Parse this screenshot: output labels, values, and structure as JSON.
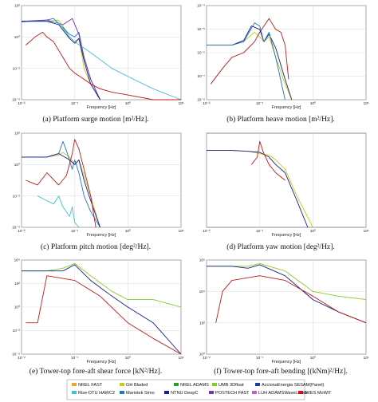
{
  "captions": [
    "(a)  Platform surge motion [m²/Hz].",
    "(b)  Platform heave motion [m²/Hz].",
    "(c)  Platform pitch motion [deg²/Hz].",
    "(d)  Platform yaw motion [deg²/Hz].",
    "(e)  Tower-top fore-aft shear force [kN²/Hz].",
    "(f)  Tower-top fore-aft bending [(kNm)²/Hz]."
  ],
  "legend": [
    {
      "name": "NREL FAST",
      "color": "#f0a32c"
    },
    {
      "name": "GH Bladed",
      "color": "#c8c820"
    },
    {
      "name": "NREL ADAMS",
      "color": "#2aa02a"
    },
    {
      "name": "UMB 3Dfloat",
      "color": "#88cc22"
    },
    {
      "name": "AccionaEnergia SESAM(Panel)",
      "color": "#1f3fa0"
    },
    {
      "name": "Rise-DTU HAWC2",
      "color": "#41c0d0"
    },
    {
      "name": "Marintek Simo",
      "color": "#1e78c8"
    },
    {
      "name": "NTNU DeepC",
      "color": "#15208a"
    },
    {
      "name": "POSTECH FAST",
      "color": "#7a30b8"
    },
    {
      "name": "LUH ADAMSWaveLoads",
      "color": "#c060c0"
    },
    {
      "name": "IWES MoWiT",
      "color": "#c01818"
    }
  ],
  "chart_data": [
    {
      "type": "line",
      "title": "",
      "xlabel": "Frequency [Hz]",
      "ylabel": "",
      "xscale": "log",
      "yscale": "log",
      "xlim": [
        0.01,
        10
      ],
      "ylim": [
        0.0001,
        100
      ],
      "xticks": [
        "10⁻²",
        "10⁻¹",
        "10⁰",
        "10¹"
      ],
      "yticks": [
        "10⁻⁴",
        "10⁻²",
        "10⁰",
        "10²"
      ],
      "series": [
        {
          "name": "GH Bladed",
          "x": [
            0.01,
            0.03,
            0.05,
            0.06,
            0.08,
            0.1,
            0.12,
            0.15,
            0.2,
            0.3
          ],
          "y": [
            10,
            10,
            12,
            5,
            1,
            0.5,
            0.8,
            0.01,
            0.001,
            0.0001
          ]
        },
        {
          "name": "Marintek Simo",
          "x": [
            0.01,
            0.03,
            0.04,
            0.06,
            0.08,
            0.1,
            0.12,
            0.15,
            0.2,
            0.3
          ],
          "y": [
            9,
            12,
            15,
            4,
            1.5,
            1,
            2,
            0.05,
            0.002,
            0.0001
          ]
        },
        {
          "name": "POSTECH FAST",
          "x": [
            0.01,
            0.03,
            0.06,
            0.09,
            0.12,
            0.15,
            0.2,
            0.3
          ],
          "y": [
            10,
            12,
            6,
            15,
            1.5,
            0.05,
            0.002,
            0.0001
          ]
        },
        {
          "name": "Rise-DTU HAWC2",
          "x": [
            0.01,
            0.03,
            0.05,
            0.08,
            0.1,
            0.2,
            0.5,
            1,
            3,
            10
          ],
          "y": [
            10,
            10,
            8,
            1,
            0.5,
            0.1,
            0.01,
            0.003,
            0.0005,
            0.0001
          ]
        },
        {
          "name": "NTNU DeepC",
          "x": [
            0.01,
            0.03,
            0.05,
            0.08,
            0.1,
            0.12,
            0.15,
            0.2,
            0.3
          ],
          "y": [
            10,
            10,
            6,
            0.8,
            0.4,
            0.8,
            0.03,
            0.001,
            0.0001
          ]
        },
        {
          "name": "IWES MoWiT",
          "x": [
            0.012,
            0.018,
            0.025,
            0.03,
            0.04,
            0.06,
            0.08,
            0.1,
            0.15,
            0.2,
            0.3,
            0.5,
            1,
            3,
            10
          ],
          "y": [
            0.3,
            1,
            2,
            1,
            0.5,
            0.05,
            0.01,
            0.005,
            0.002,
            0.001,
            0.0005,
            0.0003,
            0.0002,
            0.0001,
            0.0001
          ]
        }
      ]
    },
    {
      "type": "line",
      "title": "",
      "xlabel": "Frequency [Hz]",
      "ylabel": "",
      "xscale": "log",
      "yscale": "log",
      "xlim": [
        0.01,
        10
      ],
      "ylim": [
        0.0001,
        100
      ],
      "xticks": [
        "10⁻²",
        "10⁻¹",
        "10⁰",
        "10¹"
      ],
      "yticks": [
        "10⁻⁸",
        "10⁻⁷",
        "10⁻⁶",
        "10⁻⁵",
        "10⁻⁴"
      ],
      "series": [
        {
          "name": "GH Bladed",
          "x": [
            0.01,
            0.03,
            0.05,
            0.08,
            0.1,
            0.12,
            0.15,
            0.2,
            0.3,
            0.4
          ],
          "y": [
            0.3,
            0.3,
            0.5,
            2,
            1,
            0.5,
            1,
            0.05,
            0.001,
            0.0001
          ]
        },
        {
          "name": "NTNU DeepC",
          "x": [
            0.01,
            0.03,
            0.05,
            0.07,
            0.1,
            0.12,
            0.15,
            0.2,
            0.3,
            0.4
          ],
          "y": [
            0.3,
            0.3,
            0.6,
            5,
            3,
            0.5,
            1.5,
            0.2,
            0.002,
            0.0001
          ]
        },
        {
          "name": "Marintek Simo",
          "x": [
            0.01,
            0.03,
            0.05,
            0.08,
            0.1,
            0.12,
            0.15,
            0.2,
            0.3
          ],
          "y": [
            0.3,
            0.3,
            0.5,
            8,
            5,
            0.5,
            2,
            0.05,
            0.0001
          ]
        },
        {
          "name": "IWES MoWiT",
          "x": [
            0.012,
            0.02,
            0.03,
            0.05,
            0.08,
            0.1,
            0.15,
            0.2,
            0.25,
            0.3,
            0.35
          ],
          "y": [
            0.001,
            0.01,
            0.05,
            0.1,
            0.5,
            2,
            15,
            3,
            2,
            0.3,
            0.002
          ]
        }
      ]
    },
    {
      "type": "line",
      "title": "",
      "xlabel": "Frequency [Hz]",
      "ylabel": "",
      "xscale": "log",
      "yscale": "log",
      "xlim": [
        0.01,
        10
      ],
      "ylim": [
        0.0001,
        100
      ],
      "xticks": [
        "10⁻²",
        "10⁻¹",
        "10⁰",
        "10¹"
      ],
      "yticks": [
        "10⁻⁴",
        "10⁻²",
        "10⁰",
        "10²"
      ],
      "series": [
        {
          "name": "GH Bladed",
          "x": [
            0.01,
            0.03,
            0.05,
            0.06,
            0.08,
            0.1,
            0.12,
            0.15,
            0.2,
            0.3
          ],
          "y": [
            3,
            3,
            4,
            6,
            3,
            1,
            2,
            0.2,
            0.01,
            0.0001
          ]
        },
        {
          "name": "Marintek Simo",
          "x": [
            0.01,
            0.03,
            0.05,
            0.06,
            0.07,
            0.09,
            0.1,
            0.12,
            0.15,
            0.2,
            0.3
          ],
          "y": [
            3,
            3,
            5,
            30,
            8,
            0.5,
            2,
            0.3,
            0.01,
            0.001,
            0.0001
          ]
        },
        {
          "name": "NTNU DeepC",
          "x": [
            0.01,
            0.03,
            0.05,
            0.08,
            0.1,
            0.12,
            0.15,
            0.2,
            0.3
          ],
          "y": [
            3,
            3,
            5,
            2,
            1,
            2,
            0.1,
            0.005,
            0.0001
          ]
        },
        {
          "name": "Rise-DTU HAWC2",
          "x": [
            0.02,
            0.03,
            0.04,
            0.05,
            0.06,
            0.08,
            0.09,
            0.1,
            0.12
          ],
          "y": [
            0.01,
            0.005,
            0.003,
            0.01,
            0.002,
            0.0005,
            0.002,
            0.0002,
            0.0001
          ]
        },
        {
          "name": "IWES MoWiT",
          "x": [
            0.012,
            0.02,
            0.03,
            0.05,
            0.07,
            0.09,
            0.1,
            0.12,
            0.15,
            0.2,
            0.25
          ],
          "y": [
            0.1,
            0.05,
            0.3,
            0.05,
            0.2,
            5,
            40,
            10,
            0.5,
            0.01,
            0.0001
          ]
        }
      ]
    },
    {
      "type": "line",
      "title": "",
      "xlabel": "Frequency [Hz]",
      "ylabel": "",
      "xscale": "log",
      "yscale": "log",
      "xlim": [
        0.01,
        10
      ],
      "ylim": [
        0.0001,
        100
      ],
      "xticks": [
        "10⁻²",
        "10⁻¹",
        "10⁰",
        "10¹"
      ],
      "yticks": [],
      "series": [
        {
          "name": "GH Bladed",
          "x": [
            0.01,
            0.03,
            0.06,
            0.1,
            0.15,
            0.2,
            0.3,
            0.5,
            1
          ],
          "y": [
            8,
            8,
            7,
            5,
            4,
            2,
            0.5,
            0.01,
            0.0001
          ]
        },
        {
          "name": "NTNU DeepC",
          "x": [
            0.01,
            0.03,
            0.06,
            0.1,
            0.15,
            0.2,
            0.3,
            0.5,
            0.8
          ],
          "y": [
            8,
            8,
            7,
            6,
            3,
            1,
            0.3,
            0.005,
            0.0001
          ]
        },
        {
          "name": "IWES MoWiT",
          "x": [
            0.07,
            0.09,
            0.1,
            0.12,
            0.15,
            0.2,
            0.3
          ],
          "y": [
            1,
            3,
            30,
            5,
            1,
            0.3,
            0.1
          ]
        }
      ]
    },
    {
      "type": "line",
      "title": "",
      "xlabel": "Frequency [Hz]",
      "ylabel": "",
      "xscale": "log",
      "yscale": "log",
      "xlim": [
        0.01,
        10
      ],
      "ylim": [
        0.0001,
        100
      ],
      "xticks": [
        "10⁻²",
        "10⁻¹",
        "10⁰",
        "10¹"
      ],
      "yticks": [
        "10⁻⁴",
        "10⁻²",
        "10⁰",
        "10²",
        "10⁴"
      ],
      "series": [
        {
          "name": "UMB 3Dfloat",
          "x": [
            0.01,
            0.03,
            0.06,
            0.1,
            0.2,
            0.5,
            1,
            3,
            10
          ],
          "y": [
            20,
            20,
            30,
            60,
            10,
            1,
            0.3,
            0.3,
            0.1
          ]
        },
        {
          "name": "NTNU DeepC",
          "x": [
            0.01,
            0.03,
            0.06,
            0.1,
            0.2,
            0.5,
            1,
            3,
            10
          ],
          "y": [
            20,
            20,
            20,
            50,
            5,
            0.5,
            0.1,
            0.01,
            0.0001
          ]
        },
        {
          "name": "IWES MoWiT",
          "x": [
            0.012,
            0.02,
            0.03,
            0.1,
            0.3,
            1,
            3,
            10
          ],
          "y": [
            0.01,
            0.01,
            10,
            5,
            0.5,
            0.01,
            0.001,
            0.0001
          ]
        }
      ]
    },
    {
      "type": "line",
      "title": "",
      "xlabel": "Frequency [Hz]",
      "ylabel": "",
      "xscale": "log",
      "yscale": "log",
      "xlim": [
        0.01,
        10
      ],
      "ylim": [
        0.0001,
        100
      ],
      "xticks": [
        "10⁻²",
        "10⁻¹",
        "10⁰",
        "10¹"
      ],
      "yticks": [
        "10⁰",
        "10²",
        "10⁴",
        "10⁶"
      ],
      "series": [
        {
          "name": "UMB 3Dfloat",
          "x": [
            0.01,
            0.03,
            0.06,
            0.1,
            0.3,
            1,
            3,
            10
          ],
          "y": [
            40,
            40,
            40,
            60,
            20,
            1,
            0.5,
            0.3
          ]
        },
        {
          "name": "NTNU DeepC",
          "x": [
            0.01,
            0.03,
            0.06,
            0.1,
            0.3,
            1,
            3,
            10
          ],
          "y": [
            40,
            40,
            30,
            50,
            10,
            0.3,
            0.05,
            0.01
          ]
        },
        {
          "name": "IWES MoWiT",
          "x": [
            0.015,
            0.02,
            0.03,
            0.1,
            0.3,
            1,
            3,
            10
          ],
          "y": [
            0.01,
            1,
            5,
            10,
            5,
            0.5,
            0.05,
            0.01
          ]
        }
      ]
    }
  ]
}
